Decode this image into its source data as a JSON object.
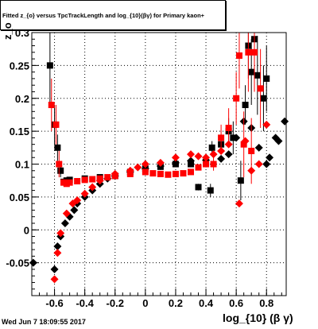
{
  "title": "Fitted  z_{o}  versus TpcTrackLength and log_{10}(βγ) for Primary kaon+",
  "footer": "Wed Jun  7 18:09:55 2017",
  "chart_data": {
    "type": "scatter",
    "title": "Fitted  z_{o}  versus TpcTrackLength and log_{10}(βγ) for Primary kaon+",
    "xlabel": "log_{10} (β γ)",
    "ylabel": "z_o",
    "xlim": [
      -0.75,
      0.93
    ],
    "ylim": [
      -0.1,
      0.3
    ],
    "xticks": [
      "-0.6",
      "-0.4",
      "-0.2",
      "0",
      "0.2",
      "0.4",
      "0.6",
      "0.8"
    ],
    "yticks": [
      "-0.05",
      "0",
      "0.05",
      "0.1",
      "0.15",
      "0.2",
      "0.25",
      "0.3"
    ],
    "grid": true,
    "series": [
      {
        "color": "#000000",
        "marker": "square",
        "points": [
          [
            -0.63,
            0.25,
            0.06
          ],
          [
            -0.6,
            0.16,
            0.03
          ],
          [
            -0.58,
            0.125,
            0.02
          ],
          [
            -0.56,
            0.09,
            0.01
          ],
          [
            -0.54,
            0.073,
            0.005
          ],
          [
            -0.52,
            0.075,
            0.004
          ],
          [
            -0.5,
            0.076,
            0.004
          ],
          [
            -0.4,
            0.078,
            0.003
          ],
          [
            -0.3,
            0.08,
            0.003
          ],
          [
            -0.2,
            0.082,
            0.003
          ],
          [
            -0.1,
            0.088,
            0.002
          ],
          [
            0.0,
            0.093,
            0.002
          ],
          [
            0.1,
            0.096,
            0.002
          ],
          [
            0.2,
            0.1,
            0.002
          ],
          [
            0.3,
            0.1,
            0.003
          ],
          [
            0.4,
            0.102,
            0.003
          ],
          [
            0.44,
            0.125,
            0.01
          ],
          [
            0.5,
            0.13,
            0.015
          ],
          [
            0.55,
            0.15,
            0.02
          ],
          [
            0.58,
            0.14,
            0.025
          ],
          [
            0.63,
            0.075,
            0.03
          ],
          [
            0.66,
            0.19,
            0.03
          ],
          [
            0.68,
            0.28,
            0.05
          ],
          [
            0.7,
            0.24,
            0.05
          ],
          [
            0.72,
            0.29,
            0.05
          ],
          [
            0.74,
            0.235,
            0.06
          ],
          [
            0.78,
            0.2,
            0.05
          ],
          [
            0.8,
            0.23,
            0.05
          ],
          [
            0.43,
            0.06,
            0.01
          ],
          [
            0.35,
            0.065,
            0.005
          ]
        ]
      },
      {
        "color": "#000000",
        "marker": "diamond",
        "points": [
          [
            -0.74,
            -0.05,
            0
          ],
          [
            -0.6,
            -0.06,
            0
          ],
          [
            -0.58,
            -0.025,
            0
          ],
          [
            -0.56,
            -0.01,
            0
          ],
          [
            -0.53,
            0.01,
            0
          ],
          [
            -0.5,
            0.02,
            0
          ],
          [
            -0.47,
            0.03,
            0
          ],
          [
            -0.45,
            0.04,
            0
          ],
          [
            -0.4,
            0.05,
            0
          ],
          [
            -0.35,
            0.06,
            0
          ],
          [
            -0.3,
            0.07,
            0
          ],
          [
            -0.25,
            0.078,
            0
          ],
          [
            -0.2,
            0.082,
            0
          ],
          [
            -0.1,
            0.088,
            0
          ],
          [
            0.0,
            0.093,
            0
          ],
          [
            0.1,
            0.097,
            0
          ],
          [
            0.2,
            0.102,
            0
          ],
          [
            0.3,
            0.105,
            0
          ],
          [
            0.4,
            0.106,
            0
          ],
          [
            0.5,
            0.108,
            0
          ],
          [
            0.55,
            0.115,
            0
          ],
          [
            0.6,
            0.14,
            0
          ],
          [
            0.65,
            0.165,
            0
          ],
          [
            0.7,
            0.155,
            0
          ],
          [
            0.75,
            0.125,
            0
          ],
          [
            0.82,
            0.11,
            0
          ],
          [
            0.86,
            0.14,
            0
          ],
          [
            0.88,
            0.135,
            0
          ],
          [
            0.92,
            0.165,
            0
          ],
          [
            0.8,
            0.1,
            0
          ]
        ]
      },
      {
        "color": "#ff0000",
        "marker": "square",
        "points": [
          [
            -0.62,
            0.19,
            0.04
          ],
          [
            -0.59,
            0.16,
            0.03
          ],
          [
            -0.57,
            0.1,
            0.02
          ],
          [
            -0.54,
            0.072,
            0.005
          ],
          [
            -0.52,
            0.07,
            0.004
          ],
          [
            -0.5,
            0.072,
            0.004
          ],
          [
            -0.45,
            0.074,
            0.003
          ],
          [
            -0.4,
            0.076,
            0.003
          ],
          [
            -0.35,
            0.077,
            0.003
          ],
          [
            -0.3,
            0.078,
            0.003
          ],
          [
            -0.25,
            0.08,
            0.003
          ],
          [
            -0.2,
            0.082,
            0.003
          ],
          [
            -0.1,
            0.085,
            0.002
          ],
          [
            0.0,
            0.088,
            0.002
          ],
          [
            0.05,
            0.086,
            0.002
          ],
          [
            0.1,
            0.085,
            0.002
          ],
          [
            0.15,
            0.084,
            0.002
          ],
          [
            0.2,
            0.085,
            0.002
          ],
          [
            0.25,
            0.086,
            0.002
          ],
          [
            0.3,
            0.088,
            0.003
          ],
          [
            0.35,
            0.095,
            0.003
          ],
          [
            0.4,
            0.1,
            0.005
          ],
          [
            0.45,
            0.1,
            0.01
          ],
          [
            0.5,
            0.14,
            0.02
          ],
          [
            0.55,
            0.155,
            0.03
          ],
          [
            0.6,
            0.2,
            0.04
          ],
          [
            0.62,
            0.265,
            0.05
          ],
          [
            0.65,
            0.13,
            0.05
          ],
          [
            0.68,
            0.27,
            0.06
          ],
          [
            0.72,
            0.27,
            0.06
          ],
          [
            0.76,
            0.215,
            0.06
          ],
          [
            0.7,
            0.12,
            0.05
          ]
        ]
      },
      {
        "color": "#ff0000",
        "marker": "diamond",
        "points": [
          [
            -0.6,
            -0.075,
            0
          ],
          [
            -0.58,
            -0.035,
            0
          ],
          [
            -0.56,
            -0.005,
            0
          ],
          [
            -0.52,
            0.025,
            0
          ],
          [
            -0.48,
            0.04,
            0
          ],
          [
            -0.45,
            0.045,
            0
          ],
          [
            -0.4,
            0.055,
            0
          ],
          [
            -0.35,
            0.065,
            0
          ],
          [
            -0.3,
            0.075,
            0
          ],
          [
            -0.2,
            0.085,
            0
          ],
          [
            -0.1,
            0.09,
            0
          ],
          [
            -0.05,
            0.095,
            0
          ],
          [
            0.0,
            0.1,
            0
          ],
          [
            0.1,
            0.102,
            0
          ],
          [
            0.2,
            0.11,
            0
          ],
          [
            0.3,
            0.115,
            0
          ],
          [
            0.35,
            0.112,
            0
          ],
          [
            0.4,
            0.11,
            0
          ],
          [
            0.45,
            0.115,
            0
          ],
          [
            0.5,
            0.12,
            0
          ],
          [
            0.55,
            0.13,
            0
          ],
          [
            0.62,
            0.04,
            0
          ],
          [
            0.66,
            0.135,
            0
          ],
          [
            0.7,
            0.09,
            0
          ],
          [
            0.75,
            0.1,
            0
          ],
          [
            0.8,
            0.16,
            0
          ]
        ]
      }
    ]
  }
}
